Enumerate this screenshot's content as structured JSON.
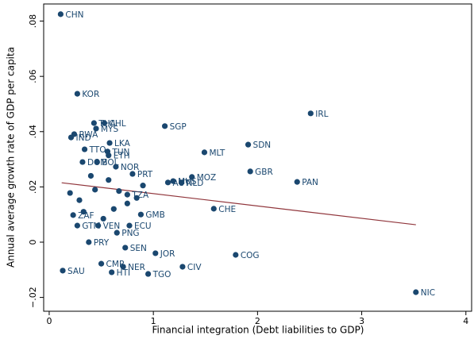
{
  "chart_data": {
    "type": "scatter",
    "xlabel": "Financial integration (Debt liabilities to GDP)",
    "ylabel": "Annual average growth rate of GDP  per capita",
    "labels": [
      "CHN",
      "KOR",
      "IRL",
      "THA",
      "CHL",
      "MYS",
      "SGP",
      "RWA",
      "IND",
      "SDN",
      "LKA",
      "MLT",
      "TTO",
      "TUN",
      "ETH",
      "DOM",
      "BOL",
      "NOR",
      "GBR",
      "PRT",
      "MOZ",
      "PAN",
      "NLD",
      "AUT",
      "MUS",
      "TZA",
      "CHE",
      "ZAF",
      "GMB",
      "PRY",
      "GTM",
      "VEN",
      "ECU",
      "PNG",
      "SEN",
      "JOR",
      "COG",
      "CMR",
      "NER",
      "CIV",
      "SAU",
      "HTI",
      "TGO",
      "NIC",
      null,
      null,
      null,
      null,
      null,
      null,
      null,
      null,
      null,
      null,
      null,
      null
    ],
    "x": [
      0.11,
      0.27,
      2.51,
      0.43,
      0.53,
      0.45,
      1.11,
      0.24,
      0.21,
      1.91,
      0.58,
      1.49,
      0.34,
      0.56,
      0.57,
      0.32,
      0.46,
      0.64,
      1.93,
      0.8,
      1.37,
      2.38,
      1.27,
      1.14,
      1.19,
      0.75,
      1.58,
      0.23,
      0.88,
      0.38,
      0.27,
      0.47,
      0.77,
      0.65,
      0.73,
      1.02,
      1.79,
      0.5,
      0.71,
      1.28,
      0.13,
      0.6,
      0.95,
      3.52,
      0.2,
      0.29,
      0.33,
      0.44,
      0.67,
      0.75,
      0.57,
      0.84,
      0.4,
      0.62,
      0.9,
      0.52
    ],
    "values": [
      0.0825,
      0.0537,
      0.0466,
      0.0431,
      0.0431,
      0.0411,
      0.042,
      0.0391,
      0.0379,
      0.0353,
      0.0359,
      0.0325,
      0.0336,
      0.0328,
      0.0314,
      0.029,
      0.029,
      0.0273,
      0.0256,
      0.0247,
      0.0236,
      0.0218,
      0.0216,
      0.0216,
      0.0221,
      0.0172,
      0.0121,
      0.0098,
      0.01,
      0.0,
      0.006,
      0.006,
      0.006,
      0.0034,
      -0.002,
      -0.004,
      -0.0046,
      -0.0078,
      -0.0089,
      -0.0089,
      -0.0103,
      -0.0109,
      -0.0115,
      -0.0181,
      0.0178,
      0.0152,
      0.011,
      0.019,
      0.0185,
      0.014,
      0.0225,
      0.016,
      0.024,
      0.012,
      0.0205,
      0.0085
    ],
    "color": "#1a476f",
    "fit_line": {
      "x": [
        0.12,
        3.52
      ],
      "y": [
        0.0215,
        0.0063
      ],
      "color": "#90353b"
    },
    "xlim": [
      -0.053,
      4.055
    ],
    "ylim": [
      -0.025,
      0.0862
    ],
    "xticks": [
      0,
      1,
      2,
      3,
      4
    ],
    "yticks": [
      {
        "value": -0.02,
        "label": "−.02"
      },
      0,
      {
        "value": 0.02,
        "label": ".02"
      },
      {
        "value": 0.04,
        "label": ".04"
      },
      {
        "value": 0.06,
        "label": ".06"
      },
      {
        "value": 0.08,
        "label": ".08"
      }
    ]
  }
}
